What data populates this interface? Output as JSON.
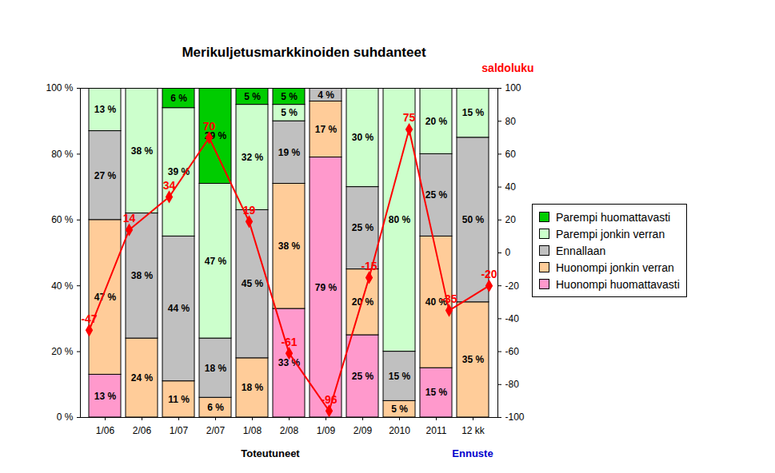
{
  "chart_data": {
    "type": "bar",
    "stacked": true,
    "title": "Merikuljetusmarkkinoiden suhdanteet",
    "xlabel": "Toteutuneet",
    "y2label": "saldoluku",
    "annotations": [
      {
        "text": "Ennuste",
        "x": "12 kk",
        "color": "#0000cc"
      }
    ],
    "categories": [
      "1/06",
      "2/06",
      "1/07",
      "2/07",
      "1/08",
      "2/08",
      "1/09",
      "2/09",
      "2010",
      "2011",
      "12 kk"
    ],
    "ylim": [
      0,
      100
    ],
    "yticks": [
      {
        "value": 0,
        "label": "0 %"
      },
      {
        "value": 20,
        "label": "20 %"
      },
      {
        "value": 40,
        "label": "40 %"
      },
      {
        "value": 60,
        "label": "60 %"
      },
      {
        "value": 80,
        "label": "80 %"
      },
      {
        "value": 100,
        "label": "100 %"
      }
    ],
    "y2lim": [
      -100,
      100
    ],
    "y2ticks": [
      -100,
      -80,
      -60,
      -40,
      -20,
      0,
      20,
      40,
      60,
      80,
      100
    ],
    "grid": false,
    "legend": "right",
    "data_labels": true,
    "series": [
      {
        "name": "Huonompi huomattavasti",
        "type": "bar",
        "color": "#ff99cc",
        "values": [
          13,
          null,
          null,
          null,
          null,
          33,
          79,
          25,
          null,
          15,
          null
        ],
        "value_labels": [
          "13 %",
          null,
          null,
          null,
          null,
          "33 %",
          "79 %",
          "25 %",
          null,
          "15 %",
          null
        ]
      },
      {
        "name": "Huonompi jonkin verran",
        "type": "bar",
        "color": "#ffcc99",
        "values": [
          47,
          24,
          11,
          6,
          18,
          38,
          17,
          20,
          5,
          40,
          35
        ],
        "value_labels": [
          "47 %",
          "24 %",
          "11 %",
          "6 %",
          "18 %",
          "38 %",
          "17 %",
          "20 %",
          "5 %",
          "40 %",
          "35 %"
        ]
      },
      {
        "name": "Ennallaan",
        "type": "bar",
        "color": "#c0c0c0",
        "values": [
          27,
          38,
          44,
          18,
          45,
          19,
          4,
          25,
          15,
          25,
          50
        ],
        "value_labels": [
          "27 %",
          "38 %",
          "44 %",
          "18 %",
          "45 %",
          "19 %",
          "4 %",
          "25 %",
          "15 %",
          "25 %",
          "50 %"
        ]
      },
      {
        "name": "Parempi jonkin verran",
        "type": "bar",
        "color": "#ccffcc",
        "values": [
          13,
          38,
          39,
          47,
          32,
          5,
          null,
          30,
          80,
          20,
          15
        ],
        "value_labels": [
          "13 %",
          "38 %",
          "39 %",
          "47 %",
          "32 %",
          "5 %",
          null,
          "30 %",
          "80 %",
          "20 %",
          "15 %"
        ]
      },
      {
        "name": "Parempi huomattavasti",
        "type": "bar",
        "color": "#00cc00",
        "values": [
          null,
          null,
          6,
          29,
          5,
          5,
          null,
          null,
          null,
          null,
          null
        ],
        "value_labels": [
          null,
          null,
          "6 %",
          "29 %",
          "5 %",
          "5 %",
          null,
          null,
          null,
          null,
          null
        ]
      },
      {
        "name": "saldoluku",
        "type": "line",
        "axis": "y2",
        "color": "#ff0000",
        "marker": "diamond",
        "values": [
          -47,
          14,
          34,
          70,
          19,
          -61,
          -96,
          -15,
          75,
          -35,
          -20
        ]
      }
    ]
  }
}
